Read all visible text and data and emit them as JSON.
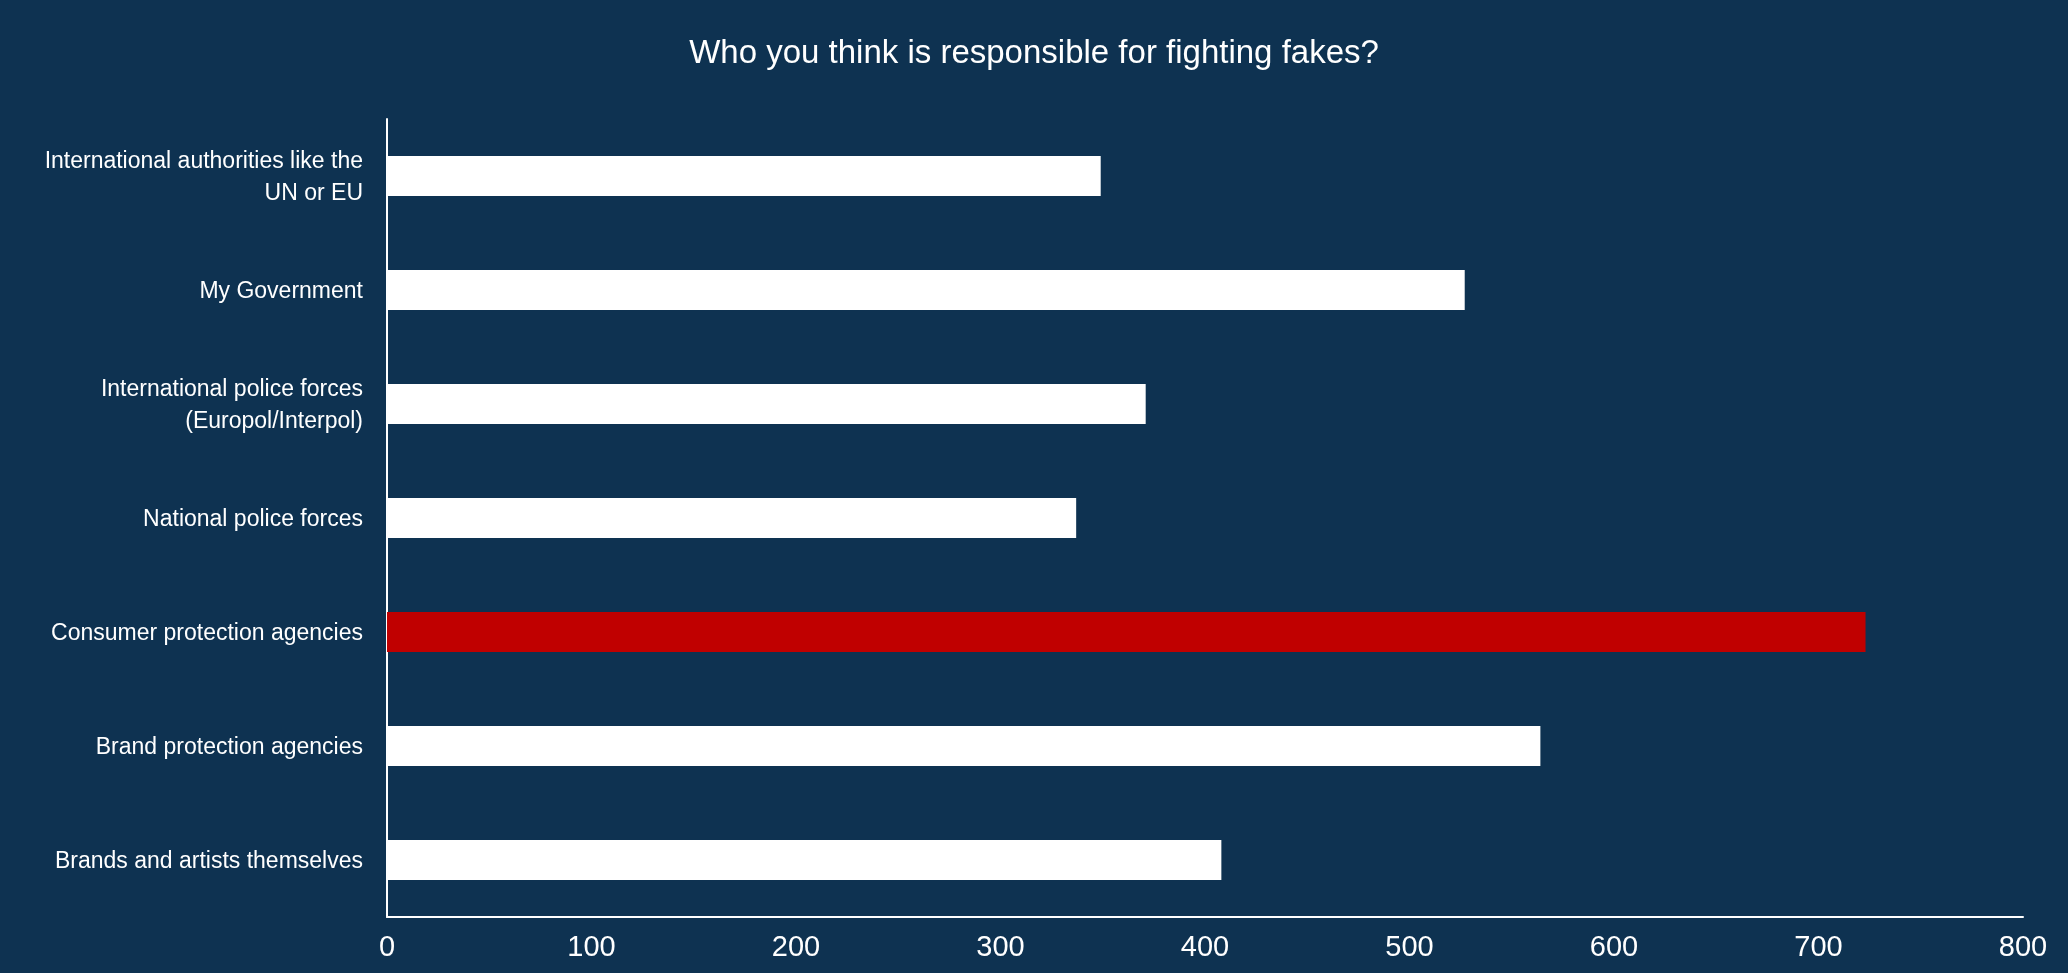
{
  "chart_data": {
    "type": "bar",
    "orientation": "horizontal",
    "title": "Who you think is responsible for fighting fakes?",
    "categories": [
      "International authorities like the\nUN or EU",
      "My Government",
      "International police forces\n(Europol/Interpol)",
      "National police forces",
      "Consumer protection agencies",
      "Brand protection agencies",
      "Brands and artists themselves"
    ],
    "values": [
      349,
      527,
      371,
      337,
      723,
      564,
      408
    ],
    "colors": [
      "#ffffff",
      "#ffffff",
      "#ffffff",
      "#ffffff",
      "#c00000",
      "#ffffff",
      "#ffffff"
    ],
    "xlim": [
      0,
      800
    ],
    "xticks": [
      0,
      100,
      200,
      300,
      400,
      500,
      600,
      700,
      800
    ],
    "grid": false
  }
}
